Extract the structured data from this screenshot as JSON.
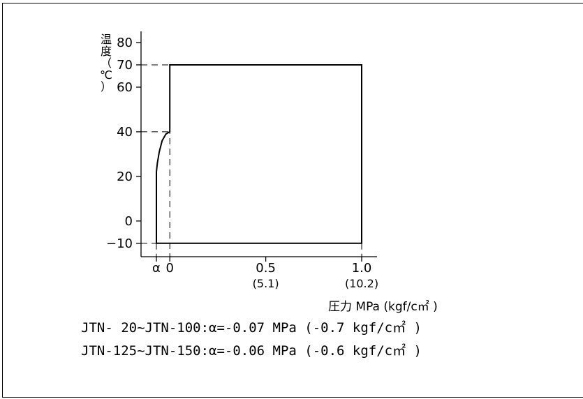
{
  "chart_data": {
    "type": "area",
    "ylabel_chars": [
      "温",
      "度",
      "（",
      "℃",
      "）"
    ],
    "xlabel": "圧力 MPa (kgf/c㎡ )",
    "y_ticks": [
      {
        "value": -10,
        "label": "−10"
      },
      {
        "value": 0,
        "label": "0"
      },
      {
        "value": 20,
        "label": "20"
      },
      {
        "value": 40,
        "label": "40"
      },
      {
        "value": 60,
        "label": "60"
      },
      {
        "value": 70,
        "label": "70"
      },
      {
        "value": 80,
        "label": "80"
      }
    ],
    "x_ticks": [
      {
        "value": -0.07,
        "label": "α",
        "sub": ""
      },
      {
        "value": 0,
        "label": "0",
        "sub": ""
      },
      {
        "value": 0.5,
        "label": "0.5",
        "sub": "(5.1)"
      },
      {
        "value": 1.0,
        "label": "1.0",
        "sub": "(10.2)"
      }
    ],
    "xlim": [
      -0.15,
      1.08
    ],
    "ylim": [
      -16,
      85
    ],
    "region": [
      [
        -0.07,
        -10
      ],
      [
        1.0,
        -10
      ],
      [
        1.0,
        70
      ],
      [
        0,
        70
      ],
      [
        0,
        40
      ],
      [
        -0.02,
        39
      ],
      [
        -0.04,
        36
      ],
      [
        -0.055,
        31
      ],
      [
        -0.065,
        26
      ],
      [
        -0.07,
        22
      ],
      [
        -0.07,
        -10
      ]
    ],
    "guides": [
      {
        "axis": "y",
        "value": 70,
        "to_x": 0
      },
      {
        "axis": "y",
        "value": 40,
        "to_x": 0
      },
      {
        "axis": "y",
        "value": -10,
        "to_x": -0.07
      },
      {
        "axis": "x",
        "value": -0.07,
        "from_y": -10
      },
      {
        "axis": "x",
        "value": 0,
        "from_y": 70
      },
      {
        "axis": "x",
        "value": 1.0,
        "from_y": -10
      }
    ]
  },
  "notes": [
    "JTN- 20~JTN-100:α=-0.07 MPa (-0.7 kgf/c㎡ )",
    "JTN-125~JTN-150:α=-0.06 MPa (-0.6 kgf/c㎡ )"
  ]
}
